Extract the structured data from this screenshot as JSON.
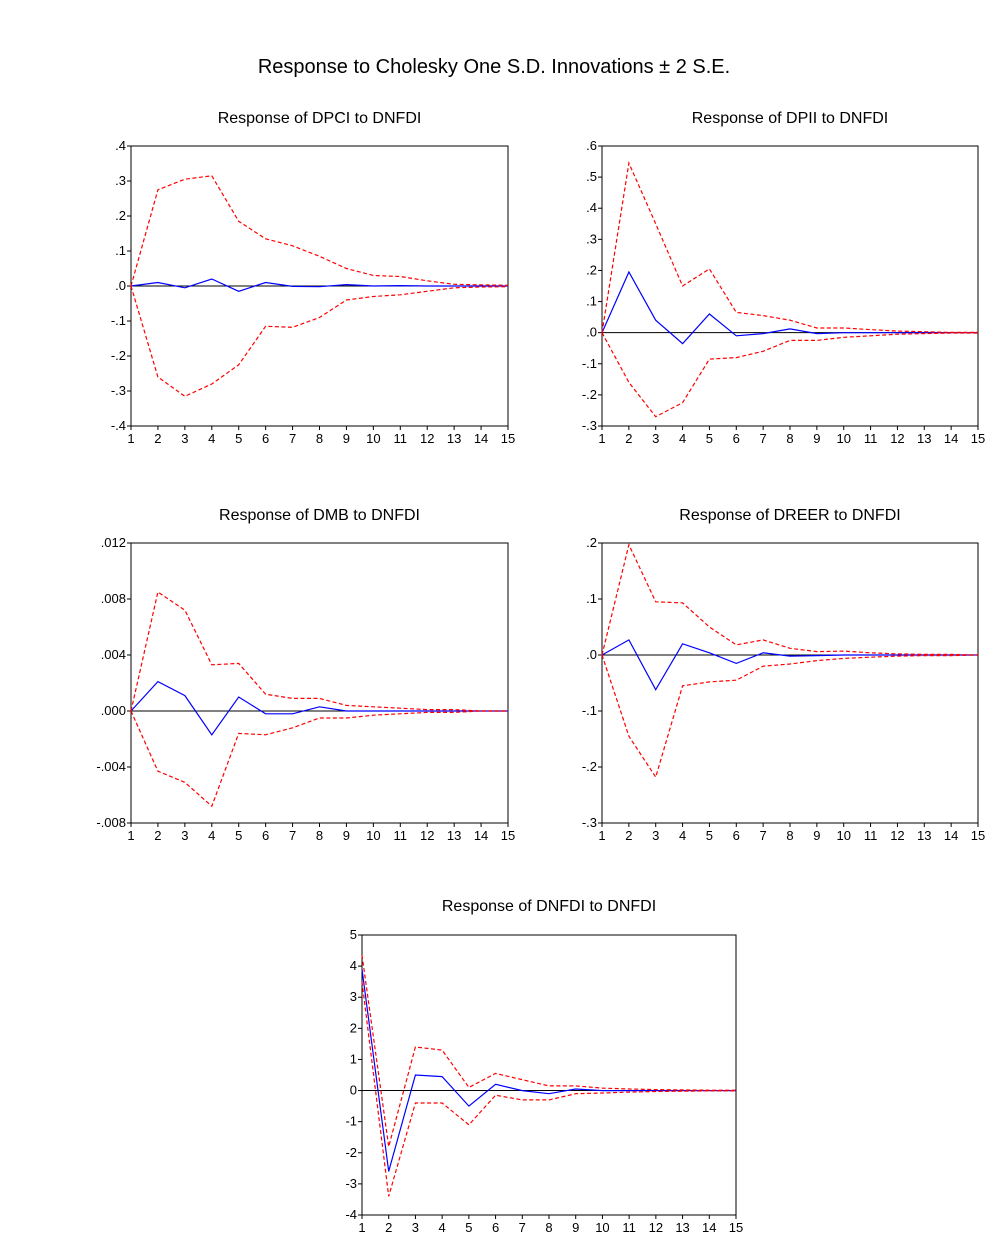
{
  "main_title": "Response to Cholesky One S.D. Innovations ± 2 S.E.",
  "colors": {
    "response": "#0000ff",
    "bands": "#ff0000",
    "axis": "#000000",
    "zero_line": "#000000"
  },
  "chart_data": [
    {
      "type": "line",
      "title": "Response of DPCI to DNFDI",
      "x": [
        1,
        2,
        3,
        4,
        5,
        6,
        7,
        8,
        9,
        10,
        11,
        12,
        13,
        14,
        15
      ],
      "x_tick_labels": [
        "1",
        "2",
        "3",
        "4",
        "5",
        "6",
        "7",
        "8",
        "9",
        "10",
        "11",
        "12",
        "13",
        "14",
        "15"
      ],
      "ylim": [
        -0.4,
        0.4
      ],
      "y_ticks": [
        0.4,
        0.3,
        0.2,
        0.1,
        0,
        -0.1,
        -0.2,
        -0.3,
        -0.4
      ],
      "y_tick_labels": [
        ".4",
        ".3",
        ".2",
        ".1",
        ".0",
        "-.1",
        "-.2",
        "-.3",
        "-.4"
      ],
      "series": [
        {
          "role": "response",
          "values": [
            0.0,
            0.01,
            -0.005,
            0.02,
            -0.015,
            0.01,
            -0.001,
            -0.002,
            0.004,
            0.0,
            0.001,
            0.0,
            0.0,
            0.0,
            0.0
          ]
        },
        {
          "role": "upper",
          "values": [
            0.0,
            0.275,
            0.305,
            0.315,
            0.185,
            0.135,
            0.115,
            0.085,
            0.05,
            0.03,
            0.027,
            0.015,
            0.005,
            0.003,
            0.002
          ]
        },
        {
          "role": "lower",
          "values": [
            0.0,
            -0.26,
            -0.315,
            -0.28,
            -0.225,
            -0.115,
            -0.118,
            -0.09,
            -0.04,
            -0.03,
            -0.025,
            -0.015,
            -0.005,
            -0.003,
            -0.002
          ]
        }
      ]
    },
    {
      "type": "line",
      "title": "Response of DPII to DNFDI",
      "x": [
        1,
        2,
        3,
        4,
        5,
        6,
        7,
        8,
        9,
        10,
        11,
        12,
        13,
        14,
        15
      ],
      "x_tick_labels": [
        "1",
        "2",
        "3",
        "4",
        "5",
        "6",
        "7",
        "8",
        "9",
        "10",
        "11",
        "12",
        "13",
        "14",
        "15"
      ],
      "ylim": [
        -0.3,
        0.6
      ],
      "y_ticks": [
        0.6,
        0.5,
        0.4,
        0.3,
        0.2,
        0.1,
        0,
        -0.1,
        -0.2,
        -0.3
      ],
      "y_tick_labels": [
        ".6",
        ".5",
        ".4",
        ".3",
        ".2",
        ".1",
        ".0",
        "-.1",
        "-.2",
        "-.3"
      ],
      "series": [
        {
          "role": "response",
          "values": [
            0.0,
            0.195,
            0.04,
            -0.035,
            0.06,
            -0.01,
            -0.003,
            0.012,
            -0.003,
            0.0,
            0.0,
            0.0,
            0.0,
            0.0,
            0.0
          ]
        },
        {
          "role": "upper",
          "values": [
            0.0,
            0.545,
            0.35,
            0.15,
            0.205,
            0.065,
            0.055,
            0.04,
            0.015,
            0.015,
            0.01,
            0.005,
            0.003,
            0.001,
            0.001
          ]
        },
        {
          "role": "lower",
          "values": [
            0.0,
            -0.16,
            -0.27,
            -0.225,
            -0.085,
            -0.08,
            -0.06,
            -0.025,
            -0.025,
            -0.015,
            -0.01,
            -0.005,
            -0.003,
            -0.001,
            -0.001
          ]
        }
      ]
    },
    {
      "type": "line",
      "title": "Response of DMB to DNFDI",
      "x": [
        1,
        2,
        3,
        4,
        5,
        6,
        7,
        8,
        9,
        10,
        11,
        12,
        13,
        14,
        15
      ],
      "x_tick_labels": [
        "1",
        "2",
        "3",
        "4",
        "5",
        "6",
        "7",
        "8",
        "9",
        "10",
        "11",
        "12",
        "13",
        "14",
        "15"
      ],
      "ylim": [
        -0.008,
        0.012
      ],
      "y_ticks": [
        0.012,
        0.008,
        0.004,
        0,
        -0.004,
        -0.008
      ],
      "y_tick_labels": [
        ".012",
        ".008",
        ".004",
        ".000",
        "-.004",
        "-.008"
      ],
      "series": [
        {
          "role": "response",
          "values": [
            0.0,
            0.0021,
            0.0011,
            -0.0017,
            0.001,
            -0.0002,
            -0.0002,
            0.0003,
            0.0,
            0.0,
            0.0,
            0.0,
            0.0,
            0.0,
            0.0
          ]
        },
        {
          "role": "upper",
          "values": [
            0.0,
            0.0085,
            0.0072,
            0.0033,
            0.0034,
            0.0012,
            0.0009,
            0.0009,
            0.0004,
            0.0003,
            0.0002,
            0.0001,
            0.0001,
            0.0,
            0.0
          ]
        },
        {
          "role": "lower",
          "values": [
            0.0,
            -0.0043,
            -0.0051,
            -0.0068,
            -0.0016,
            -0.0017,
            -0.0012,
            -0.0005,
            -0.0005,
            -0.0003,
            -0.0002,
            -0.0001,
            -0.0001,
            0.0,
            0.0
          ]
        }
      ]
    },
    {
      "type": "line",
      "title": "Response of DREER to DNFDI",
      "x": [
        1,
        2,
        3,
        4,
        5,
        6,
        7,
        8,
        9,
        10,
        11,
        12,
        13,
        14,
        15
      ],
      "x_tick_labels": [
        "1",
        "2",
        "3",
        "4",
        "5",
        "6",
        "7",
        "8",
        "9",
        "10",
        "11",
        "12",
        "13",
        "14",
        "15"
      ],
      "ylim": [
        -0.3,
        0.2
      ],
      "y_ticks": [
        0.2,
        0.1,
        0,
        -0.1,
        -0.2,
        -0.3
      ],
      "y_tick_labels": [
        ".2",
        ".1",
        ".0",
        "-.1",
        "-.2",
        "-.3"
      ],
      "series": [
        {
          "role": "response",
          "values": [
            0.0,
            0.027,
            -0.062,
            0.02,
            0.004,
            -0.015,
            0.004,
            -0.002,
            -0.001,
            0.0,
            0.0,
            0.0,
            0.0,
            0.0,
            0.0
          ]
        },
        {
          "role": "upper",
          "values": [
            0.0,
            0.197,
            0.095,
            0.093,
            0.05,
            0.018,
            0.027,
            0.012,
            0.006,
            0.007,
            0.004,
            0.002,
            0.001,
            0.001,
            0.0
          ]
        },
        {
          "role": "lower",
          "values": [
            0.0,
            -0.145,
            -0.218,
            -0.055,
            -0.048,
            -0.045,
            -0.02,
            -0.016,
            -0.01,
            -0.006,
            -0.004,
            -0.002,
            -0.001,
            -0.001,
            0.0
          ]
        }
      ]
    },
    {
      "type": "line",
      "title": "Response of DNFDI to DNFDI",
      "x": [
        1,
        2,
        3,
        4,
        5,
        6,
        7,
        8,
        9,
        10,
        11,
        12,
        13,
        14,
        15
      ],
      "x_tick_labels": [
        "1",
        "2",
        "3",
        "4",
        "5",
        "6",
        "7",
        "8",
        "9",
        "10",
        "11",
        "12",
        "13",
        "14",
        "15"
      ],
      "ylim": [
        -4,
        5
      ],
      "y_ticks": [
        5,
        4,
        3,
        2,
        1,
        0,
        -1,
        -2,
        -3,
        -4
      ],
      "y_tick_labels": [
        "5",
        "4",
        "3",
        "2",
        "1",
        "0",
        "-1",
        "-2",
        "-3",
        "-4"
      ],
      "series": [
        {
          "role": "response",
          "values": [
            3.9,
            -2.6,
            0.5,
            0.45,
            -0.5,
            0.2,
            0.0,
            -0.1,
            0.05,
            0.0,
            0.0,
            0.0,
            0.0,
            0.0,
            0.0
          ]
        },
        {
          "role": "upper",
          "values": [
            4.35,
            -1.8,
            1.4,
            1.3,
            0.1,
            0.55,
            0.35,
            0.15,
            0.15,
            0.08,
            0.05,
            0.03,
            0.02,
            0.01,
            0.01
          ]
        },
        {
          "role": "lower",
          "values": [
            3.5,
            -3.4,
            -0.4,
            -0.4,
            -1.1,
            -0.15,
            -0.3,
            -0.3,
            -0.1,
            -0.08,
            -0.05,
            -0.03,
            -0.02,
            -0.01,
            -0.01
          ]
        }
      ]
    }
  ]
}
